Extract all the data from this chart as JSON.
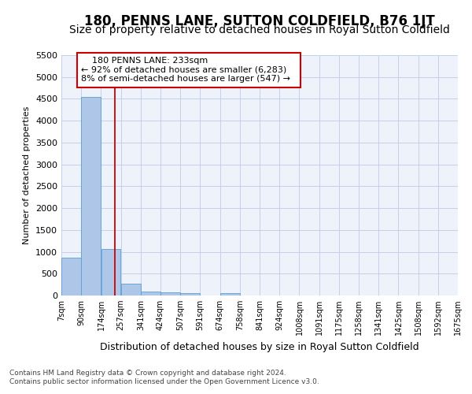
{
  "title": "180, PENNS LANE, SUTTON COLDFIELD, B76 1JT",
  "subtitle": "Size of property relative to detached houses in Royal Sutton Coldfield",
  "xlabel": "Distribution of detached houses by size in Royal Sutton Coldfield",
  "ylabel": "Number of detached properties",
  "footnote1": "Contains HM Land Registry data © Crown copyright and database right 2024.",
  "footnote2": "Contains public sector information licensed under the Open Government Licence v3.0.",
  "annotation_line1": "180 PENNS LANE: 233sqm",
  "annotation_line2": "← 92% of detached houses are smaller (6,283)",
  "annotation_line3": "8% of semi-detached houses are larger (547) →",
  "property_size": 233,
  "bar_edges": [
    7,
    90,
    174,
    257,
    341,
    424,
    507,
    591,
    674,
    758,
    841,
    924,
    1008,
    1091,
    1175,
    1258,
    1341,
    1425,
    1508,
    1592,
    1675
  ],
  "bar_heights": [
    870,
    4540,
    1060,
    275,
    95,
    80,
    55,
    0,
    55,
    0,
    0,
    0,
    0,
    0,
    0,
    0,
    0,
    0,
    0,
    0
  ],
  "bar_color": "#aec6e8",
  "bar_edgecolor": "#5a9fd4",
  "vline_color": "#cc0000",
  "vline_x": 233,
  "ylim": [
    0,
    5500
  ],
  "yticks": [
    0,
    500,
    1000,
    1500,
    2000,
    2500,
    3000,
    3500,
    4000,
    4500,
    5000,
    5500
  ],
  "bg_color": "#eef2fb",
  "grid_color": "#c5cfe8",
  "annotation_box_color": "#cc0000",
  "title_fontsize": 12,
  "subtitle_fontsize": 10
}
